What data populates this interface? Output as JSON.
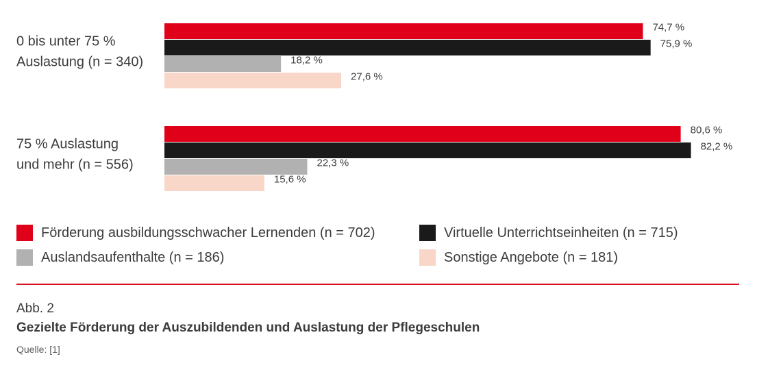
{
  "chart_data": {
    "type": "bar",
    "orientation": "horizontal",
    "categories": [
      [
        "0 bis unter 75 %",
        "Auslastung (n = 340)"
      ],
      [
        "75 % Auslastung",
        "und mehr (n = 556)"
      ]
    ],
    "series": [
      {
        "name": "Förderung ausbildungsschwacher Lernenden (n = 702)",
        "color": "#e1001a",
        "values": [
          74.7,
          80.6
        ],
        "labels": [
          "74,7 %",
          "80,6 %"
        ]
      },
      {
        "name": "Virtuelle Unterrichtseinheiten (n = 715)",
        "color": "#1a1a1a",
        "values": [
          75.9,
          82.2
        ],
        "labels": [
          "75,9 %",
          "82,2 %"
        ]
      },
      {
        "name": "Auslandsaufenthalte (n = 186)",
        "color": "#b1b1b1",
        "values": [
          18.2,
          22.3
        ],
        "labels": [
          "18,2 %",
          "22,3 %"
        ]
      },
      {
        "name": "Sonstige Angebote (n = 181)",
        "color": "#f8d7c9",
        "values": [
          27.6,
          15.6
        ],
        "labels": [
          "27,6 %",
          "15,6 %"
        ]
      }
    ],
    "xlim": [
      0,
      100
    ],
    "grid": false,
    "legend_position": "bottom"
  },
  "caption": {
    "number": "Abb. 2",
    "title": "Gezielte Förderung der Auszubildenden und Auslastung der Pflegeschulen",
    "source": "Quelle: [1]"
  },
  "colors": {
    "divider": "#d8121f"
  }
}
